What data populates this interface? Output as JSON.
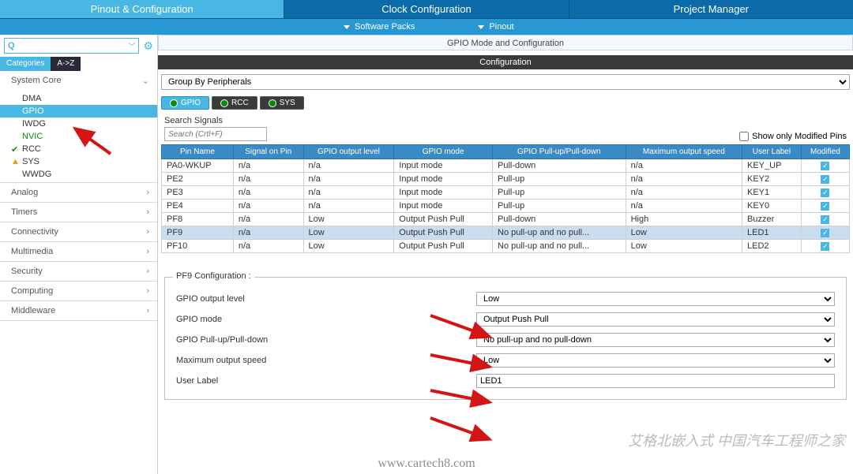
{
  "top_tabs": {
    "pinout": "Pinout & Configuration",
    "clock": "Clock Configuration",
    "project": "Project Manager"
  },
  "sub_bar": {
    "software_packs": "Software Packs",
    "pinout": "Pinout"
  },
  "sidebar": {
    "cat_tab": "Categories",
    "az_tab": "A->Z",
    "sections": {
      "system_core": {
        "label": "System Core",
        "items": [
          {
            "label": "DMA",
            "mark": ""
          },
          {
            "label": "GPIO",
            "mark": "",
            "selected": true
          },
          {
            "label": "IWDG",
            "mark": ""
          },
          {
            "label": "NVIC",
            "mark": "",
            "green": true
          },
          {
            "label": "RCC",
            "mark": "check"
          },
          {
            "label": "SYS",
            "mark": "warn"
          },
          {
            "label": "WWDG",
            "mark": ""
          }
        ]
      },
      "analog": "Analog",
      "timers": "Timers",
      "connectivity": "Connectivity",
      "multimedia": "Multimedia",
      "security": "Security",
      "computing": "Computing",
      "middleware": "Middleware"
    }
  },
  "content": {
    "mode_header": "GPIO Mode and Configuration",
    "conf_header": "Configuration",
    "group_by": "Group By Peripherals",
    "per_tabs": {
      "gpio": "GPIO",
      "rcc": "RCC",
      "sys": "SYS"
    },
    "search_label": "Search Signals",
    "search_placeholder": "Search (Crtl+F)",
    "show_modified": "Show only Modified Pins",
    "table": {
      "headers": [
        "Pin Name",
        "Signal on Pin",
        "GPIO output level",
        "GPIO mode",
        "GPIO Pull-up/Pull-down",
        "Maximum output speed",
        "User Label",
        "Modified"
      ],
      "rows": [
        {
          "c": [
            "PA0-WKUP",
            "n/a",
            "n/a",
            "Input mode",
            "Pull-down",
            "n/a",
            "KEY_UP"
          ],
          "m": true
        },
        {
          "c": [
            "PE2",
            "n/a",
            "n/a",
            "Input mode",
            "Pull-up",
            "n/a",
            "KEY2"
          ],
          "m": true
        },
        {
          "c": [
            "PE3",
            "n/a",
            "n/a",
            "Input mode",
            "Pull-up",
            "n/a",
            "KEY1"
          ],
          "m": true
        },
        {
          "c": [
            "PE4",
            "n/a",
            "n/a",
            "Input mode",
            "Pull-up",
            "n/a",
            "KEY0"
          ],
          "m": true
        },
        {
          "c": [
            "PF8",
            "n/a",
            "Low",
            "Output Push Pull",
            "Pull-down",
            "High",
            "Buzzer"
          ],
          "m": true
        },
        {
          "c": [
            "PF9",
            "n/a",
            "Low",
            "Output Push Pull",
            "No pull-up and no pull...",
            "Low",
            "LED1"
          ],
          "m": true,
          "sel": true
        },
        {
          "c": [
            "PF10",
            "n/a",
            "Low",
            "Output Push Pull",
            "No pull-up and no pull...",
            "Low",
            "LED2"
          ],
          "m": true
        }
      ]
    },
    "pin_conf": {
      "title": "PF9 Configuration :",
      "output_level_label": "GPIO output level",
      "output_level": "Low",
      "mode_label": "GPIO mode",
      "mode": "Output Push Pull",
      "pull_label": "GPIO Pull-up/Pull-down",
      "pull": "No pull-up and no pull-down",
      "speed_label": "Maximum output speed",
      "speed": "Low",
      "user_label_label": "User Label",
      "user_label": "LED1"
    }
  },
  "watermark": "艾格北嵌入式  中国汽车工程师之家",
  "url": "www.cartech8.com",
  "colors": {
    "accent": "#49b7e4",
    "dark": "#3a3a3a",
    "arrow": "#d41515"
  }
}
